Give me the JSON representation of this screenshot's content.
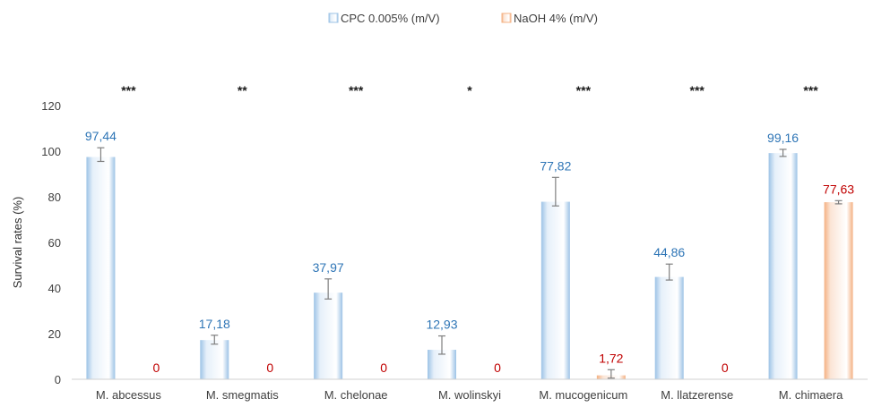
{
  "chart_data": {
    "type": "bar",
    "categories": [
      "M. abcessus",
      "M. smegmatis",
      "M. chelonae",
      "M. wolinskyi",
      "M. mucogenicum",
      "M. llatzerense",
      "M. chimaera"
    ],
    "series": [
      {
        "name": "CPC 0.005% (m/V)",
        "values": [
          97.44,
          17.18,
          37.97,
          12.93,
          77.82,
          44.86,
          99.16
        ],
        "labels": [
          "97,44",
          "17,18",
          "37,97",
          "12,93",
          "77,82",
          "44,86",
          "99,16"
        ],
        "error_upper": [
          101.5,
          19.3,
          44.0,
          19.0,
          88.5,
          50.5,
          100.8
        ],
        "error_lower": [
          95.5,
          15.4,
          35.2,
          11.0,
          76.0,
          43.5,
          97.7
        ],
        "color": "#9dc3e6",
        "fill": "#e6f0fa",
        "label_color": "#2e75b6"
      },
      {
        "name": "NaOH 4% (m/V)",
        "values": [
          0,
          0,
          0,
          0,
          1.72,
          0,
          77.63
        ],
        "labels": [
          "0",
          "0",
          "0",
          "0",
          "1,72",
          "0",
          "77,63"
        ],
        "error_upper": [
          null,
          null,
          null,
          null,
          4.2,
          null,
          78.3
        ],
        "error_lower": [
          null,
          null,
          null,
          null,
          0.5,
          null,
          76.9
        ],
        "color": "#f4b183",
        "fill": "#fbe5d6",
        "label_color": "#c00000"
      }
    ],
    "significance": [
      "***",
      "**",
      "***",
      "*",
      "***",
      "***",
      "***"
    ],
    "xlabel": "",
    "ylabel": "Survival rates (%)",
    "ylim": [
      0,
      120
    ],
    "yticks": [
      0,
      20,
      40,
      60,
      80,
      100,
      120
    ],
    "grid": false,
    "legend_position": "top-center"
  }
}
